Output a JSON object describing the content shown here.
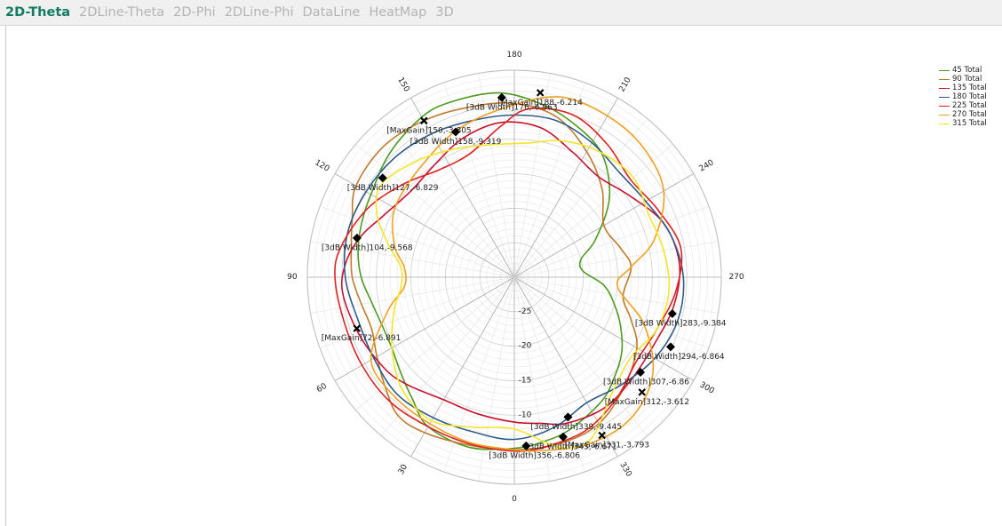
{
  "tabs": [
    {
      "label": "2D-Theta",
      "active": true
    },
    {
      "label": "2DLine-Theta",
      "active": false
    },
    {
      "label": "2D-Phi",
      "active": false
    },
    {
      "label": "2DLine-Phi",
      "active": false
    },
    {
      "label": "DataLine",
      "active": false
    },
    {
      "label": "HeatMap",
      "active": false
    },
    {
      "label": "3D",
      "active": false
    }
  ],
  "chart_data": {
    "type": "polar-line",
    "angle_ticks": [
      "0",
      "30",
      "60",
      "90",
      "120",
      "150",
      "180",
      "210",
      "240",
      "270",
      "300",
      "330"
    ],
    "radial_range": [
      -30,
      0
    ],
    "radial_tick_labels": [
      "-25",
      "-20",
      "-15",
      "-10",
      "-5"
    ],
    "radial_tick_values": [
      -25,
      -20,
      -15,
      -10,
      -5
    ],
    "grid": true,
    "legend_position": "top-right",
    "series": [
      {
        "name": "45 Total",
        "color": "#4c9a1f",
        "values": [
          [
            0,
            -5.2
          ],
          [
            15,
            -4.5
          ],
          [
            30,
            -5.0
          ],
          [
            40,
            -7.0
          ],
          [
            50,
            -8.5
          ],
          [
            60,
            -9.5
          ],
          [
            70,
            -9.6
          ],
          [
            80,
            -9.0
          ],
          [
            90,
            -7.8
          ],
          [
            100,
            -7.0
          ],
          [
            110,
            -6.5
          ],
          [
            120,
            -6.0
          ],
          [
            135,
            -4.5
          ],
          [
            150,
            -3.2
          ],
          [
            160,
            -3.0
          ],
          [
            175,
            -3.2
          ],
          [
            188,
            -4.5
          ],
          [
            200,
            -6.0
          ],
          [
            215,
            -8.0
          ],
          [
            230,
            -12.0
          ],
          [
            245,
            -17.0
          ],
          [
            255,
            -20.0
          ],
          [
            265,
            -20.0
          ],
          [
            275,
            -17.0
          ],
          [
            285,
            -15.0
          ],
          [
            295,
            -13.0
          ],
          [
            305,
            -11.0
          ],
          [
            315,
            -9.5
          ],
          [
            325,
            -8.0
          ],
          [
            340,
            -6.5
          ],
          [
            350,
            -5.8
          ],
          [
            360,
            -5.2
          ]
        ]
      },
      {
        "name": "90 Total",
        "color": "#c07a2c",
        "values": [
          [
            0,
            -5.0
          ],
          [
            15,
            -4.8
          ],
          [
            30,
            -4.0
          ],
          [
            40,
            -3.8
          ],
          [
            50,
            -5.5
          ],
          [
            60,
            -7.0
          ],
          [
            70,
            -8.0
          ],
          [
            80,
            -7.5
          ],
          [
            90,
            -6.5
          ],
          [
            100,
            -6.0
          ],
          [
            110,
            -5.0
          ],
          [
            120,
            -3.5
          ],
          [
            135,
            -3.2
          ],
          [
            150,
            -3.8
          ],
          [
            165,
            -4.5
          ],
          [
            180,
            -4.8
          ],
          [
            195,
            -6.0
          ],
          [
            210,
            -9.0
          ],
          [
            225,
            -12.0
          ],
          [
            240,
            -15.0
          ],
          [
            255,
            -14.0
          ],
          [
            265,
            -13.0
          ],
          [
            280,
            -14.0
          ],
          [
            290,
            -12.0
          ],
          [
            300,
            -9.5
          ],
          [
            315,
            -7.5
          ],
          [
            330,
            -5.5
          ],
          [
            345,
            -5.0
          ],
          [
            360,
            -5.0
          ]
        ]
      },
      {
        "name": "135 Total",
        "color": "#c8102e",
        "values": [
          [
            0,
            -9.0
          ],
          [
            15,
            -9.5
          ],
          [
            30,
            -9.5
          ],
          [
            45,
            -8.0
          ],
          [
            55,
            -7.0
          ],
          [
            70,
            -6.0
          ],
          [
            85,
            -5.0
          ],
          [
            95,
            -5.5
          ],
          [
            105,
            -7.0
          ],
          [
            115,
            -9.0
          ],
          [
            130,
            -10.5
          ],
          [
            145,
            -10.0
          ],
          [
            160,
            -8.5
          ],
          [
            175,
            -7.5
          ],
          [
            190,
            -8.0
          ],
          [
            205,
            -10.0
          ],
          [
            220,
            -11.0
          ],
          [
            235,
            -9.5
          ],
          [
            250,
            -7.0
          ],
          [
            265,
            -6.0
          ],
          [
            280,
            -6.5
          ],
          [
            295,
            -7.5
          ],
          [
            310,
            -7.5
          ],
          [
            325,
            -7.0
          ],
          [
            340,
            -7.5
          ],
          [
            350,
            -8.5
          ],
          [
            360,
            -9.0
          ]
        ]
      },
      {
        "name": "180 Total",
        "color": "#2e5c8a",
        "values": [
          [
            0,
            -6.5
          ],
          [
            15,
            -6.8
          ],
          [
            30,
            -6.5
          ],
          [
            45,
            -6.0
          ],
          [
            60,
            -6.5
          ],
          [
            75,
            -6.5
          ],
          [
            90,
            -5.5
          ],
          [
            105,
            -5.0
          ],
          [
            120,
            -5.2
          ],
          [
            135,
            -5.5
          ],
          [
            150,
            -6.0
          ],
          [
            165,
            -6.5
          ],
          [
            180,
            -6.5
          ],
          [
            195,
            -6.5
          ],
          [
            210,
            -7.5
          ],
          [
            225,
            -8.5
          ],
          [
            240,
            -8.0
          ],
          [
            255,
            -6.5
          ],
          [
            270,
            -5.5
          ],
          [
            285,
            -5.5
          ],
          [
            300,
            -6.5
          ],
          [
            315,
            -8.0
          ],
          [
            330,
            -9.0
          ],
          [
            345,
            -7.5
          ],
          [
            360,
            -6.5
          ]
        ]
      },
      {
        "name": "225 Total",
        "color": "#e02020",
        "values": [
          [
            0,
            -4.8
          ],
          [
            15,
            -5.0
          ],
          [
            30,
            -5.0
          ],
          [
            45,
            -4.5
          ],
          [
            60,
            -4.5
          ],
          [
            75,
            -4.5
          ],
          [
            90,
            -4.0
          ],
          [
            100,
            -4.5
          ],
          [
            115,
            -6.5
          ],
          [
            130,
            -9.0
          ],
          [
            145,
            -11.0
          ],
          [
            160,
            -11.0
          ],
          [
            175,
            -8.0
          ],
          [
            185,
            -5.5
          ],
          [
            200,
            -5.0
          ],
          [
            215,
            -6.5
          ],
          [
            230,
            -8.0
          ],
          [
            245,
            -7.0
          ],
          [
            260,
            -5.5
          ],
          [
            275,
            -6.5
          ],
          [
            290,
            -8.0
          ],
          [
            305,
            -8.5
          ],
          [
            320,
            -7.0
          ],
          [
            335,
            -5.5
          ],
          [
            350,
            -5.0
          ],
          [
            360,
            -4.8
          ]
        ]
      },
      {
        "name": "270 Total",
        "color": "#f0a020",
        "values": [
          [
            0,
            -5.0
          ],
          [
            15,
            -5.2
          ],
          [
            30,
            -5.5
          ],
          [
            45,
            -5.5
          ],
          [
            60,
            -6.0
          ],
          [
            75,
            -11.0
          ],
          [
            85,
            -14.0
          ],
          [
            95,
            -14.0
          ],
          [
            105,
            -12.0
          ],
          [
            120,
            -10.0
          ],
          [
            140,
            -9.0
          ],
          [
            160,
            -7.0
          ],
          [
            180,
            -5.0
          ],
          [
            195,
            -3.0
          ],
          [
            210,
            -3.0
          ],
          [
            225,
            -3.5
          ],
          [
            240,
            -5.0
          ],
          [
            255,
            -9.0
          ],
          [
            265,
            -13.0
          ],
          [
            275,
            -15.0
          ],
          [
            290,
            -10.0
          ],
          [
            305,
            -5.5
          ],
          [
            320,
            -3.5
          ],
          [
            335,
            -3.5
          ],
          [
            350,
            -4.5
          ],
          [
            360,
            -5.0
          ]
        ]
      },
      {
        "name": "315 Total",
        "color": "#f5e52a",
        "values": [
          [
            0,
            -8.0
          ],
          [
            15,
            -7.5
          ],
          [
            30,
            -6.0
          ],
          [
            45,
            -7.0
          ],
          [
            60,
            -9.5
          ],
          [
            75,
            -12.0
          ],
          [
            85,
            -13.5
          ],
          [
            95,
            -13.5
          ],
          [
            105,
            -11.0
          ],
          [
            115,
            -8.0
          ],
          [
            125,
            -6.5
          ],
          [
            140,
            -8.0
          ],
          [
            155,
            -9.5
          ],
          [
            170,
            -10.5
          ],
          [
            185,
            -10.5
          ],
          [
            200,
            -9.0
          ],
          [
            215,
            -8.0
          ],
          [
            230,
            -7.5
          ],
          [
            245,
            -8.5
          ],
          [
            260,
            -8.0
          ],
          [
            275,
            -7.5
          ],
          [
            290,
            -8.0
          ],
          [
            305,
            -9.5
          ],
          [
            320,
            -8.0
          ],
          [
            335,
            -4.0
          ],
          [
            345,
            -4.5
          ],
          [
            360,
            -8.0
          ]
        ]
      }
    ],
    "annotations": [
      {
        "text": "[MaxGain]150,-3.805",
        "angle": 150,
        "r": -3.805,
        "marker": "x",
        "anchor": "end"
      },
      {
        "text": "[MaxGain]188,-6.214",
        "angle": 188,
        "r": -3.0,
        "marker": "x",
        "anchor": "middle"
      },
      {
        "text": "[3dB Width]176,-6.963",
        "angle": 176,
        "r": -3.9,
        "marker": "diamond",
        "anchor": "start"
      },
      {
        "text": "[3dB Width]158,-9.319",
        "angle": 158,
        "r": -7.3,
        "marker": "diamond",
        "anchor": "middle"
      },
      {
        "text": "[3dB Width]127,-6.829",
        "angle": 127,
        "r": -6.1,
        "marker": "diamond",
        "anchor": "start"
      },
      {
        "text": "[3dB Width]104,-9.568",
        "angle": 104,
        "r": -6.5,
        "marker": "diamond",
        "anchor": "start"
      },
      {
        "text": "[MaxGain]72,-6.891",
        "angle": 72,
        "r": -6.0,
        "marker": "x",
        "anchor": "start"
      },
      {
        "text": "[3dB Width]283,-9.384",
        "angle": 283,
        "r": -6.5,
        "marker": "diamond",
        "anchor": "end"
      },
      {
        "text": "[3dB Width]294,-6.864",
        "angle": 294,
        "r": -5.2,
        "marker": "diamond",
        "anchor": "end"
      },
      {
        "text": "[3dB Width]307,-6.86",
        "angle": 307,
        "r": -7.1,
        "marker": "diamond",
        "anchor": "end"
      },
      {
        "text": "[MaxGain]312,-3.612",
        "angle": 312,
        "r": -5.1,
        "marker": "x",
        "anchor": "end"
      },
      {
        "text": "[3dB Width]339,-9.445",
        "angle": 339,
        "r": -8.3,
        "marker": "diamond",
        "anchor": "end"
      },
      {
        "text": "[3dB Width]343,-6.671",
        "angle": 343,
        "r": -5.8,
        "marker": "diamond",
        "anchor": "end"
      },
      {
        "text": "[MaxGain]331,-3.793",
        "angle": 331,
        "r": -3.8,
        "marker": "x",
        "anchor": "end"
      },
      {
        "text": "[3dB Width]356,-6.806",
        "angle": 356,
        "r": -5.5,
        "marker": "diamond",
        "anchor": "end"
      }
    ]
  }
}
